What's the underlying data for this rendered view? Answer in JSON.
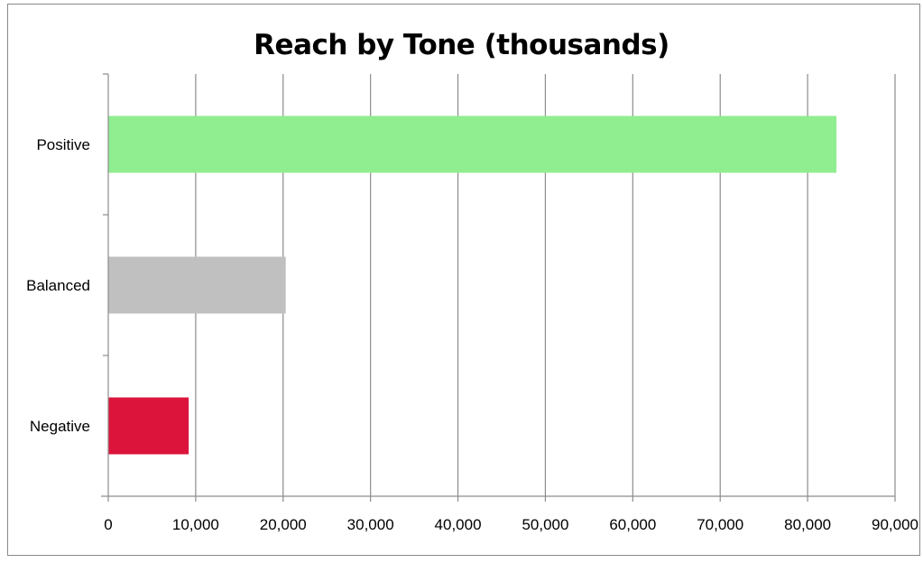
{
  "chart_data": {
    "type": "bar",
    "orientation": "horizontal",
    "title": "Reach by Tone (thousands)",
    "xlabel": "",
    "ylabel": "",
    "categories": [
      "Positive",
      "Balanced",
      "Negative"
    ],
    "values": [
      83300,
      20300,
      9200
    ],
    "colors": [
      "#90EE90",
      "#C0C0C0",
      "#DC143C"
    ],
    "xlim": [
      0,
      90000
    ],
    "xticks": [
      0,
      10000,
      20000,
      30000,
      40000,
      50000,
      60000,
      70000,
      80000,
      90000
    ],
    "xtick_labels": [
      "0",
      "10,000",
      "20,000",
      "30,000",
      "40,000",
      "50,000",
      "60,000",
      "70,000",
      "80,000",
      "90,000"
    ],
    "grid": "vertical major gridlines",
    "legend": "none"
  }
}
